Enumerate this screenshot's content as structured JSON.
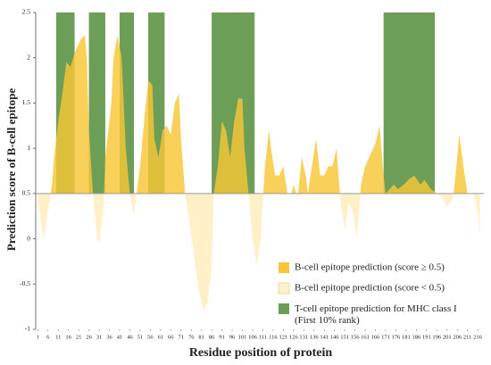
{
  "chart_data": {
    "type": "area",
    "x_label": "Residue position of protein",
    "y_label": "Prediction score of B-cell epitope",
    "x": [
      1,
      3,
      4,
      6,
      8,
      9,
      11,
      13,
      15,
      17,
      19,
      22,
      24,
      25,
      26,
      28,
      30,
      31,
      33,
      34,
      37,
      38,
      40,
      42,
      44,
      46,
      48,
      49,
      51,
      53,
      55,
      57,
      58,
      60,
      62,
      64,
      66,
      68,
      70,
      71,
      73,
      75,
      78,
      80,
      82,
      84,
      86,
      87,
      89,
      91,
      93,
      95,
      97,
      99,
      101,
      102,
      104,
      106,
      108,
      110,
      112,
      114,
      115,
      117,
      119,
      121,
      123,
      125,
      126,
      128,
      130,
      132,
      133,
      135,
      137,
      139,
      141,
      143,
      145,
      147,
      149,
      151,
      153,
      155,
      157,
      159,
      161,
      163,
      166,
      168,
      170,
      171,
      173,
      175,
      177,
      180,
      182,
      185,
      188,
      190,
      193,
      196,
      199,
      201,
      204,
      206,
      207,
      209,
      211,
      214,
      216,
      217
    ],
    "values": [
      0.45,
      0.1,
      0.0,
      0.3,
      0.6,
      0.9,
      1.3,
      1.6,
      1.95,
      1.9,
      2.05,
      2.2,
      2.25,
      2.0,
      1.2,
      0.5,
      0.0,
      -0.05,
      0.3,
      0.9,
      1.5,
      2.0,
      2.25,
      2.0,
      1.0,
      0.5,
      0.25,
      0.45,
      0.8,
      1.3,
      1.75,
      1.7,
      1.1,
      0.9,
      1.2,
      1.25,
      1.15,
      1.5,
      1.6,
      1.1,
      0.5,
      0.2,
      -0.3,
      -0.6,
      -0.8,
      -0.7,
      -0.3,
      0.5,
      0.8,
      1.3,
      1.2,
      0.9,
      1.3,
      1.55,
      1.55,
      1.0,
      0.5,
      0.0,
      -0.3,
      0.0,
      0.8,
      1.2,
      1.0,
      0.7,
      0.7,
      0.8,
      0.5,
      0.5,
      0.6,
      0.45,
      0.9,
      0.7,
      0.5,
      0.8,
      1.1,
      0.7,
      0.7,
      0.8,
      0.8,
      1.0,
      0.4,
      0.1,
      0.4,
      0.3,
      0.0,
      0.6,
      0.8,
      0.9,
      1.05,
      1.25,
      0.7,
      0.5,
      0.55,
      0.6,
      0.55,
      0.6,
      0.65,
      0.7,
      0.6,
      0.65,
      0.55,
      0.5,
      0.45,
      0.35,
      0.45,
      0.9,
      1.15,
      0.8,
      0.5,
      0.5,
      0.3,
      0.0
    ],
    "threshold": 0.5,
    "regions": [
      [
        10,
        19
      ],
      [
        26,
        34
      ],
      [
        41,
        48
      ],
      [
        55,
        63
      ],
      [
        86,
        107
      ],
      [
        170,
        195
      ]
    ],
    "series": [
      {
        "name": "B-cell epitope prediction (score ≥ 0.5)",
        "color": "#f8c636"
      },
      {
        "name": "B-cell epitope prediction (score < 0.5)",
        "color": "#fff0c8"
      },
      {
        "name": "T-cell epitope prediction for MHC class I (First 10% rank)",
        "color": "#6c9e58"
      }
    ],
    "xlim": [
      0,
      219
    ],
    "xticks": [
      1,
      6,
      11,
      16,
      21,
      26,
      31,
      36,
      41,
      46,
      51,
      56,
      61,
      66,
      71,
      76,
      81,
      86,
      91,
      96,
      101,
      106,
      111,
      116,
      121,
      126,
      131,
      136,
      141,
      146,
      151,
      156,
      161,
      166,
      171,
      176,
      181,
      186,
      191,
      196,
      201,
      206,
      211,
      216
    ],
    "ylim": [
      -1,
      2.5
    ],
    "yticks": [
      -1,
      -0.5,
      0,
      0.5,
      1,
      1.5,
      2,
      2.5
    ],
    "legend": "lower right"
  }
}
